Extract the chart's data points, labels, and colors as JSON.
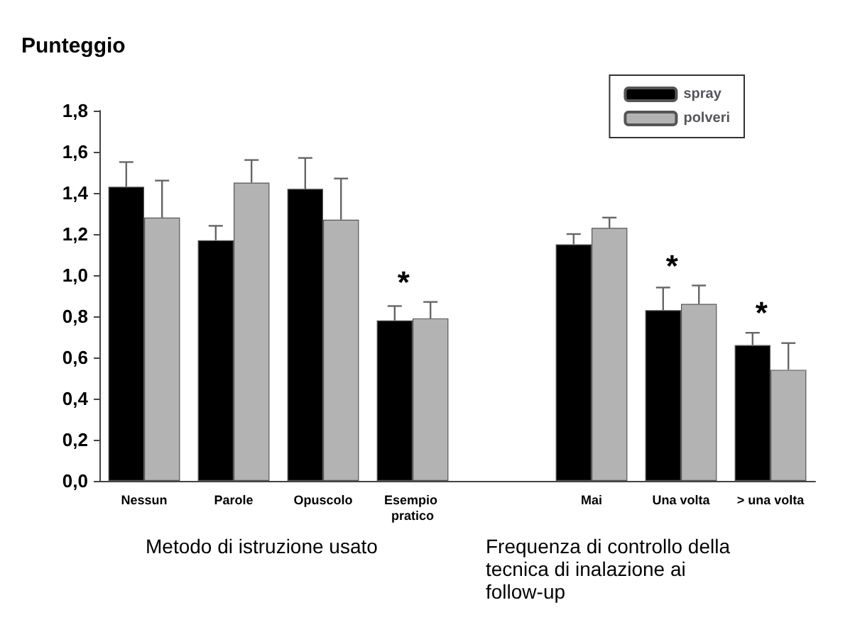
{
  "chart_data": {
    "type": "bar",
    "ylabel": "Punteggio",
    "categories": [
      "Nessun",
      "Parole",
      "Opuscolo",
      "Esempio pratico",
      null,
      "Mai",
      "Una volta",
      "> una volta"
    ],
    "series": [
      {
        "name": "spray",
        "color": "#000000",
        "values": [
          1.43,
          1.17,
          1.42,
          0.78,
          null,
          1.15,
          0.83,
          0.66
        ],
        "value_labels": [
          null,
          null,
          null,
          "*",
          null,
          null,
          "*",
          "*"
        ],
        "errors": [
          [
            1.43,
            1.55
          ],
          [
            1.17,
            1.24
          ],
          [
            1.42,
            1.57
          ],
          [
            0.78,
            0.85
          ],
          null,
          [
            1.15,
            1.2
          ],
          [
            0.83,
            0.94
          ],
          [
            0.66,
            0.72
          ]
        ]
      },
      {
        "name": "polveri",
        "color": "#b3b3b3",
        "values": [
          1.28,
          1.45,
          1.27,
          0.79,
          null,
          1.23,
          0.86,
          0.54
        ],
        "errors": [
          [
            1.28,
            1.46
          ],
          [
            1.45,
            1.56
          ],
          [
            1.27,
            1.47
          ],
          [
            0.79,
            0.87
          ],
          null,
          [
            1.23,
            1.28
          ],
          [
            0.86,
            0.95
          ],
          [
            0.54,
            0.67
          ]
        ]
      }
    ],
    "ylim": [
      0,
      1.8
    ],
    "yticks": [
      {
        "value": 0,
        "label": "0,0"
      },
      {
        "value": 0.2,
        "label": "0,2"
      },
      {
        "value": 0.4,
        "label": "0,4"
      },
      {
        "value": 0.6,
        "label": "0,6"
      },
      {
        "value": 0.8,
        "label": "0,8"
      },
      {
        "value": 1,
        "label": "1,0"
      },
      {
        "value": 1.2,
        "label": "1,2"
      },
      {
        "value": 1.4,
        "label": "1,4"
      },
      {
        "value": 1.6,
        "label": "1,6"
      },
      {
        "value": 1.8,
        "label": "1,8"
      }
    ],
    "legend": "top right",
    "grid": false,
    "annotations": [
      "Metodo di istruzione usato",
      "Frequenza di controllo della tecnica di inalazione ai follow-up"
    ]
  }
}
